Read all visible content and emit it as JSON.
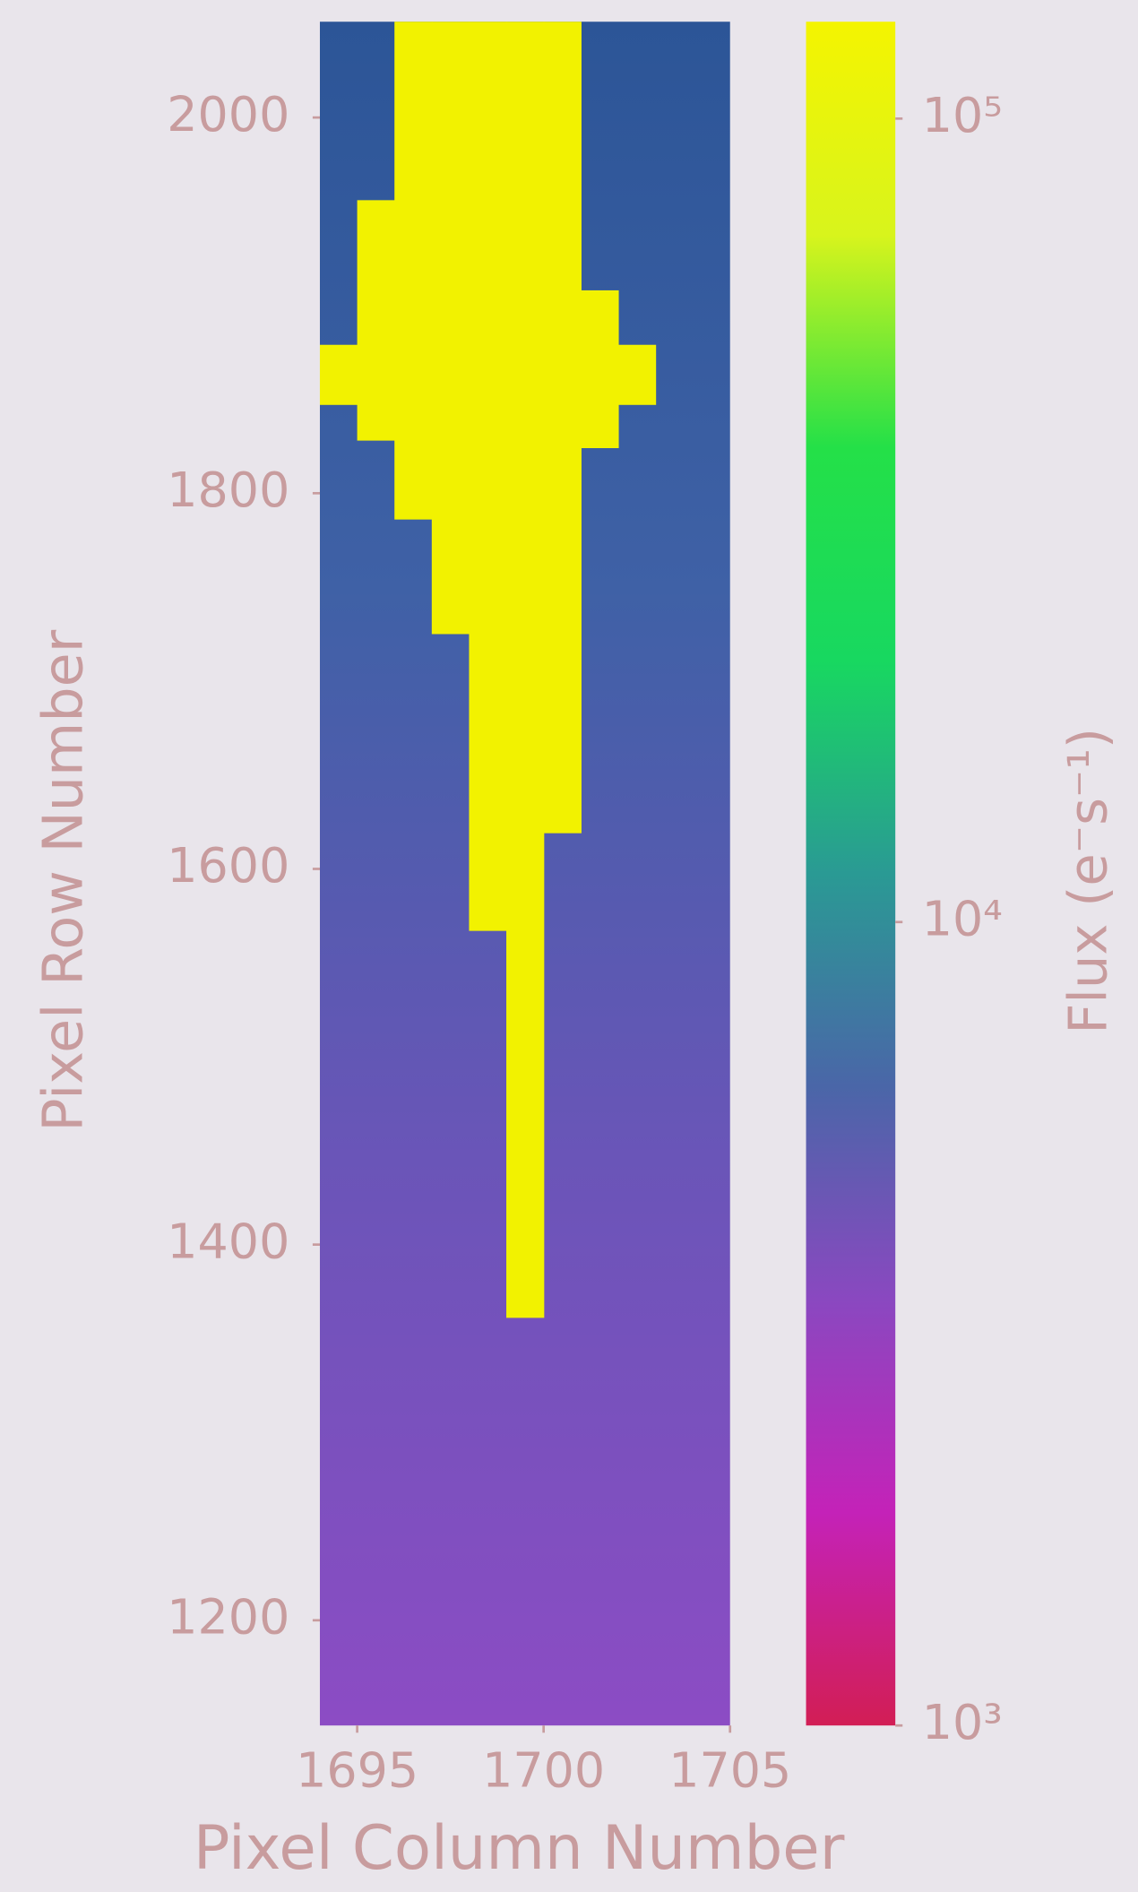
{
  "chart_data": {
    "type": "heatmap",
    "xlabel": "Pixel Column Number",
    "ylabel": "Pixel Row Number",
    "colorbar_label": "Flux (e⁻s⁻¹)",
    "xlim": [
      1694,
      1705
    ],
    "xticks": [
      1695,
      1700,
      1705
    ],
    "ylim": [
      1144,
      2051
    ],
    "yticks": [
      1200,
      1400,
      1600,
      1800,
      2000
    ],
    "background_colors": [
      "#2c5597",
      "#3f61a6",
      "#6a55b8",
      "#8c4cc4"
    ],
    "saturated": {
      "color": "#f2f200",
      "x": [
        1694,
        1695,
        1696,
        1697,
        1698,
        1699,
        1700,
        1701,
        1702
      ],
      "top": [
        1879,
        1956,
        2051,
        2051,
        2051,
        2051,
        2051,
        1908,
        1879
      ],
      "bottom": [
        1847,
        1828,
        1786,
        1725,
        1567,
        1361,
        1619,
        1824,
        1847
      ]
    },
    "clim": [
      1000,
      132000
    ],
    "colorbar_log": true,
    "colorbar_colors": [
      "#d21e55",
      "#c422b8",
      "#8a48c0",
      "#4a66a8",
      "#2a9a94",
      "#18d860",
      "#24e048",
      "#d8f41c",
      "#f4f400"
    ],
    "colorbar_ticks": [
      {
        "value": 1000,
        "label": "10³"
      },
      {
        "value": 10000,
        "label": "10⁴"
      },
      {
        "value": 100000,
        "label": "10⁵"
      }
    ]
  }
}
